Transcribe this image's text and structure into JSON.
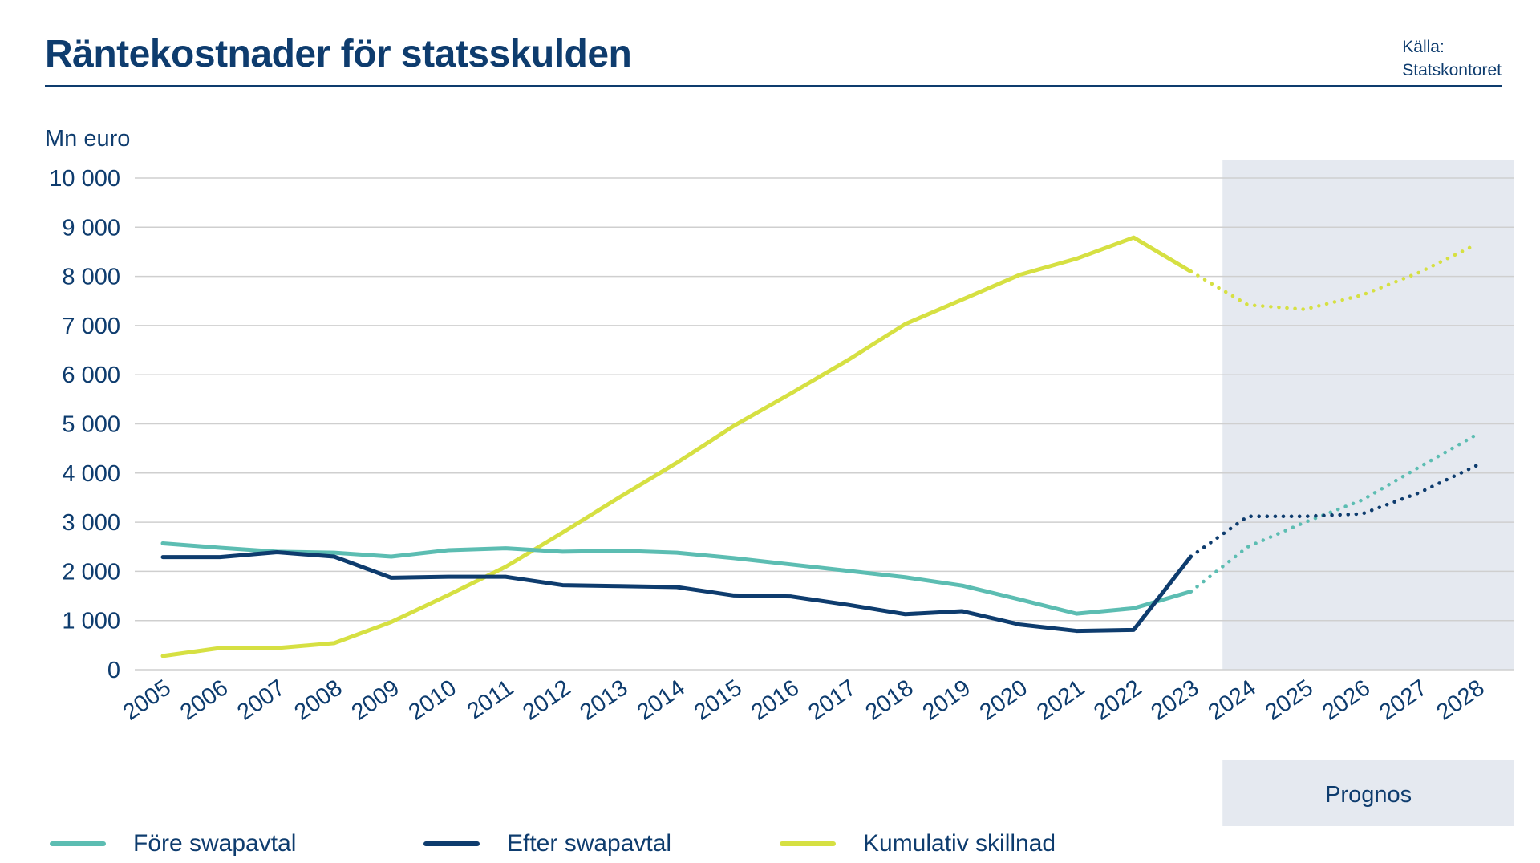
{
  "header": {
    "title": "Räntekostnader för statsskulden",
    "source_line1": "Källa:",
    "source_line2": "Statskontoret"
  },
  "chart_data": {
    "type": "line",
    "title": "Räntekostnader för statsskulden",
    "ylabel": "Mn euro",
    "xlabel": "",
    "ylim": [
      0,
      10000
    ],
    "yticks": [
      0,
      1000,
      2000,
      3000,
      4000,
      5000,
      6000,
      7000,
      8000,
      9000,
      10000
    ],
    "ytick_labels": [
      "0",
      "1 000",
      "2 000",
      "3 000",
      "4 000",
      "5 000",
      "6 000",
      "7 000",
      "8 000",
      "9 000",
      "10 000"
    ],
    "categories": [
      "2005",
      "2006",
      "2007",
      "2008",
      "2009",
      "2010",
      "2011",
      "2012",
      "2013",
      "2014",
      "2015",
      "2016",
      "2017",
      "2018",
      "2019",
      "2020",
      "2021",
      "2022",
      "2023",
      "2024",
      "2025",
      "2026",
      "2027",
      "2028"
    ],
    "forecast_region": {
      "label": "Prognos",
      "from": "2024",
      "to": "2028"
    },
    "grid": true,
    "legend_position": "bottom",
    "series": [
      {
        "name": "Före swapavtal",
        "color": "#5cbdb2",
        "values": [
          2570,
          2480,
          2400,
          2380,
          2300,
          2430,
          2470,
          2400,
          2420,
          2380,
          2270,
          2140,
          2010,
          1880,
          1710,
          1430,
          1140,
          1250,
          1590,
          2500,
          3000,
          3450,
          4120,
          4780
        ],
        "forecast_values": [
          null,
          null,
          null,
          null,
          null,
          null,
          null,
          null,
          null,
          null,
          null,
          null,
          null,
          null,
          null,
          null,
          null,
          null,
          1590,
          2500,
          3000,
          3450,
          4120,
          4780
        ]
      },
      {
        "name": "Efter swapavtal",
        "color": "#0e3c6e",
        "values": [
          2290,
          2290,
          2390,
          2300,
          1870,
          1890,
          1890,
          1720,
          1700,
          1680,
          1510,
          1490,
          1320,
          1130,
          1190,
          920,
          790,
          810,
          2300,
          3120,
          3120,
          3170,
          3600,
          4150
        ],
        "forecast_values": [
          null,
          null,
          null,
          null,
          null,
          null,
          null,
          null,
          null,
          null,
          null,
          null,
          null,
          null,
          null,
          null,
          null,
          null,
          2300,
          3120,
          3120,
          3170,
          3600,
          4150
        ]
      },
      {
        "name": "Kumulativ skillnad",
        "color": "#d6e042",
        "values": [
          280,
          440,
          440,
          540,
          970,
          1520,
          2090,
          2790,
          3510,
          4210,
          4960,
          5620,
          6300,
          7030,
          7530,
          8030,
          8360,
          8790,
          8100,
          7420,
          7330,
          7620,
          8080,
          8650
        ],
        "forecast_values": [
          null,
          null,
          null,
          null,
          null,
          null,
          null,
          null,
          null,
          null,
          null,
          null,
          null,
          null,
          null,
          null,
          null,
          null,
          8100,
          7420,
          7330,
          7620,
          8080,
          8650
        ]
      }
    ]
  },
  "legend": [
    {
      "label": "Före swapavtal",
      "color": "#5cbdb2"
    },
    {
      "label": "Efter swapavtal",
      "color": "#0e3c6e"
    },
    {
      "label": "Kumulativ skillnad",
      "color": "#d6e042"
    }
  ],
  "colors": {
    "text": "#0e3c6e",
    "grid": "#cfcfcf",
    "forecast_band": "#e5e9f0"
  }
}
